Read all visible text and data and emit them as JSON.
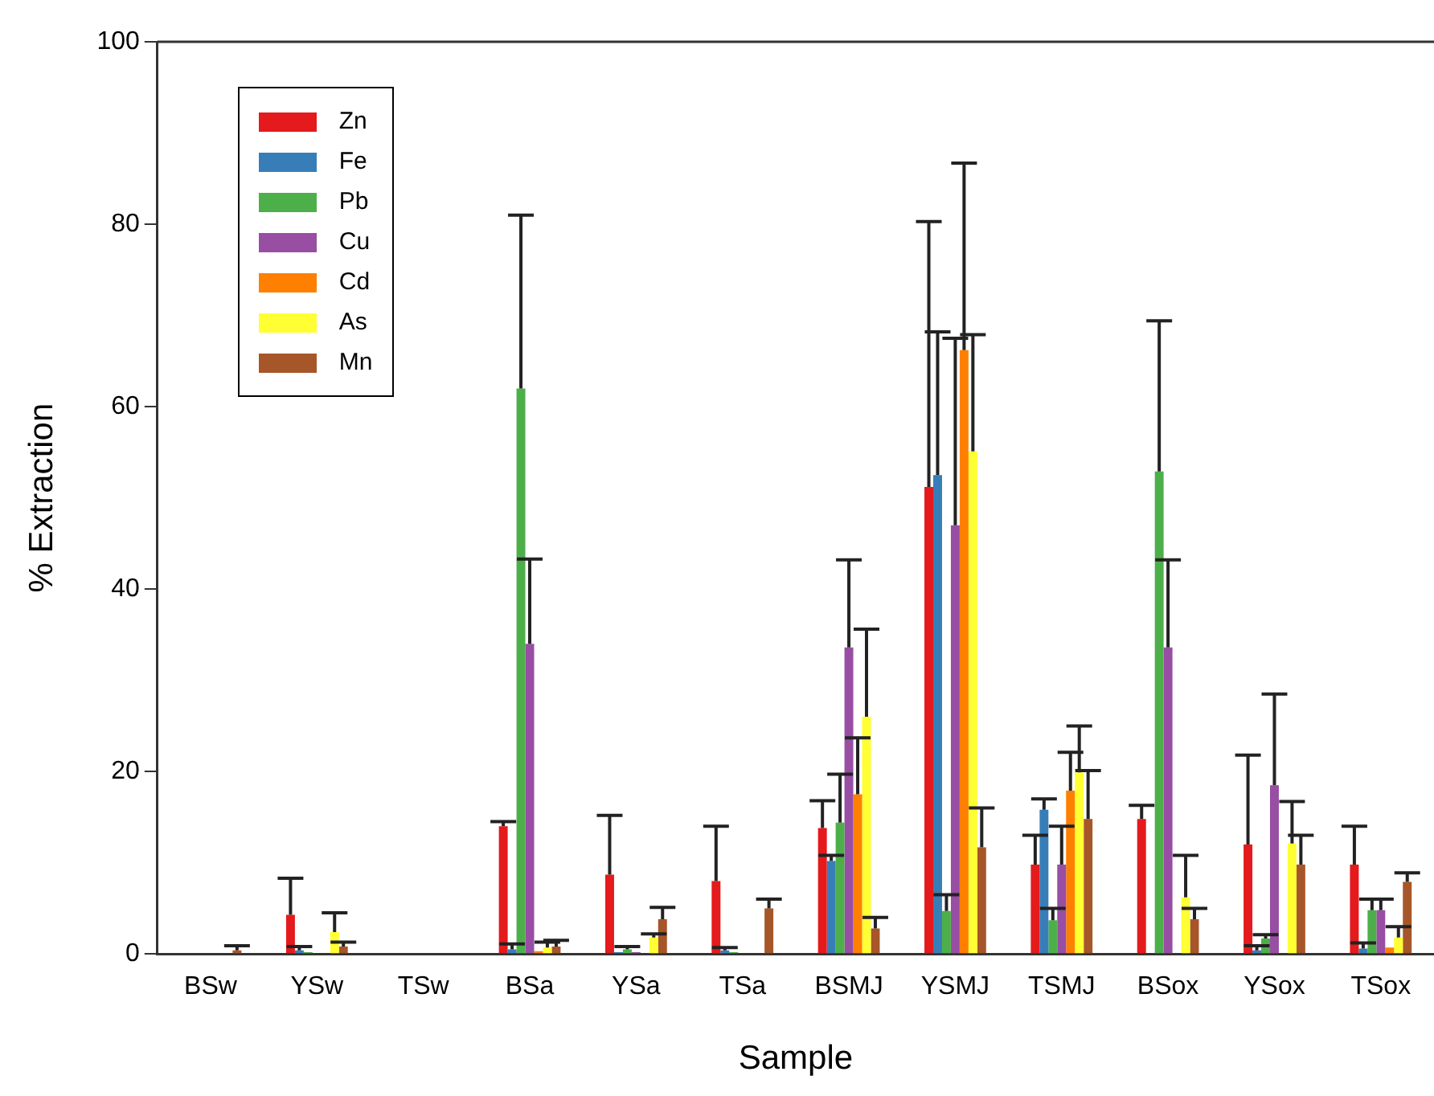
{
  "chart_data": {
    "type": "bar",
    "xlabel": "Sample",
    "ylabel": "% Extraction",
    "categories": [
      "BSw",
      "YSw",
      "TSw",
      "BSa",
      "YSa",
      "TSa",
      "BSMJ",
      "YSMJ",
      "TSMJ",
      "BSox",
      "YSox",
      "TSox"
    ],
    "ylim": [
      0,
      100
    ],
    "yticks": [
      0,
      20,
      40,
      60,
      80,
      100
    ],
    "grid": false,
    "legend": "top left",
    "series": [
      {
        "name": "Zn",
        "color": "#e41a1c",
        "values": [
          0,
          4.3,
          0,
          14,
          8.7,
          8,
          13.8,
          51.2,
          9.8,
          14.8,
          12,
          9.8
        ],
        "errors": [
          null,
          [
            4.3,
            8.3
          ],
          null,
          [
            14,
            14.5
          ],
          [
            8.7,
            15.2
          ],
          [
            8,
            14
          ],
          [
            13.8,
            16.8
          ],
          [
            51.2,
            80.3
          ],
          [
            9.8,
            13
          ],
          [
            14.8,
            16.3
          ],
          [
            12,
            21.8
          ],
          [
            9.8,
            14
          ]
        ]
      },
      {
        "name": "Fe",
        "color": "#377eb8",
        "values": [
          0,
          0.4,
          0,
          0.5,
          0.2,
          0.4,
          10.2,
          52.5,
          15.8,
          0,
          0.4,
          0.6
        ],
        "errors": [
          null,
          [
            0.4,
            0.8
          ],
          null,
          [
            0.5,
            1.1
          ],
          null,
          [
            0.4,
            0.7
          ],
          [
            10.2,
            10.8
          ],
          [
            52.5,
            68.2
          ],
          [
            15.8,
            17
          ],
          null,
          [
            0.4,
            0.9
          ],
          [
            0.6,
            1.2
          ]
        ]
      },
      {
        "name": "Pb",
        "color": "#4daf4a",
        "values": [
          0,
          0.2,
          0,
          62,
          0.5,
          0.2,
          14.4,
          4.7,
          3.7,
          52.9,
          1.7,
          4.8
        ],
        "errors": [
          null,
          null,
          null,
          [
            62,
            81
          ],
          [
            0.5,
            0.8
          ],
          null,
          [
            14.4,
            19.7
          ],
          [
            4.7,
            6.5
          ],
          [
            3.7,
            5
          ],
          [
            52.9,
            69.4
          ],
          [
            1.7,
            2.1
          ],
          [
            4.8,
            6
          ]
        ]
      },
      {
        "name": "Cu",
        "color": "#984ea3",
        "values": [
          0,
          0,
          0,
          34,
          0.2,
          0,
          33.6,
          47,
          9.8,
          33.6,
          18.5,
          4.8
        ],
        "errors": [
          null,
          null,
          null,
          [
            34,
            43.3
          ],
          null,
          null,
          [
            33.6,
            43.2
          ],
          [
            47,
            67.5
          ],
          [
            9.8,
            14
          ],
          [
            33.6,
            43.2
          ],
          [
            18.5,
            28.5
          ],
          [
            4.8,
            6
          ]
        ]
      },
      {
        "name": "Cd",
        "color": "#ff7f00",
        "values": [
          0,
          0,
          0,
          0.3,
          0,
          0,
          17.5,
          66.2,
          17.9,
          0,
          0,
          0.7
        ],
        "errors": [
          null,
          null,
          null,
          null,
          null,
          null,
          [
            17.5,
            23.7
          ],
          [
            66.2,
            86.7
          ],
          [
            17.9,
            22.1
          ],
          null,
          null,
          null
        ]
      },
      {
        "name": "As",
        "color": "#ffff33",
        "values": [
          0,
          2.4,
          0,
          0.7,
          1.8,
          0,
          26,
          55.1,
          19.9,
          6.2,
          12.1,
          1.8
        ],
        "errors": [
          null,
          [
            2.4,
            4.5
          ],
          null,
          [
            0.7,
            1.3
          ],
          [
            1.8,
            2.2
          ],
          null,
          [
            26,
            35.6
          ],
          [
            55.1,
            67.9
          ],
          [
            19.9,
            25
          ],
          [
            6.2,
            10.8
          ],
          [
            12.1,
            16.7
          ],
          [
            1.8,
            3
          ]
        ]
      },
      {
        "name": "Mn",
        "color": "#a65628",
        "values": [
          0.4,
          0.8,
          0,
          0.8,
          3.8,
          5,
          2.8,
          11.7,
          14.8,
          3.8,
          9.8,
          7.9
        ],
        "errors": [
          [
            0.4,
            0.9
          ],
          [
            0.8,
            1.3
          ],
          null,
          [
            0.8,
            1.5
          ],
          [
            3.8,
            5.1
          ],
          [
            5,
            6
          ],
          [
            2.8,
            4
          ],
          [
            11.7,
            16
          ],
          [
            14.8,
            20.1
          ],
          [
            3.8,
            5
          ],
          [
            9.8,
            13
          ],
          [
            7.9,
            8.9
          ]
        ]
      }
    ]
  }
}
